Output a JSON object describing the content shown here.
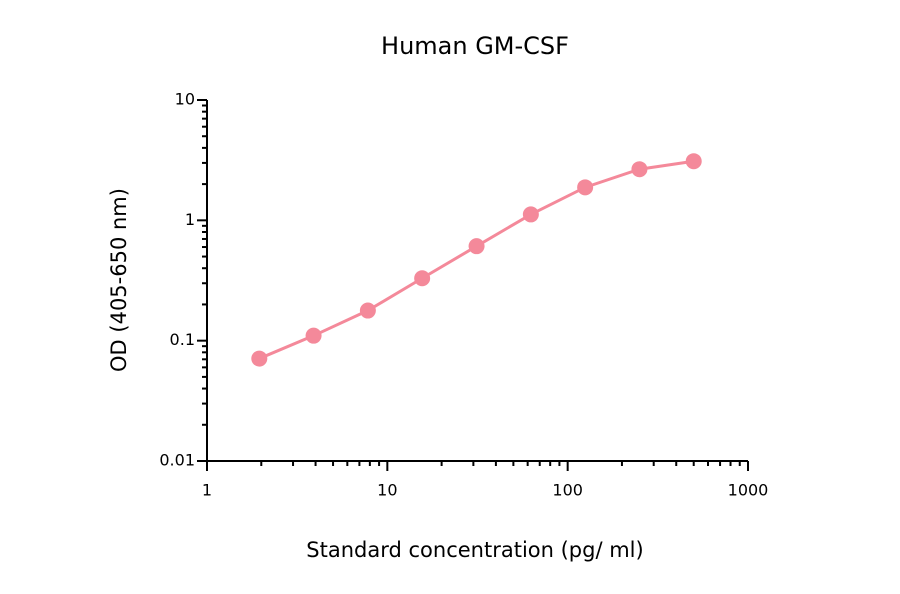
{
  "chart_data": {
    "type": "line",
    "title": "Human GM-CSF",
    "x_label": "Standard concentration (pg/ ml)",
    "y_label": "OD (405-650 nm)",
    "x": [
      1.95,
      3.9,
      7.8,
      15.6,
      31.25,
      62.5,
      125,
      250,
      500
    ],
    "series": [
      {
        "name": "Human GM-CSF",
        "color": "#f4899a",
        "values": [
          0.071,
          0.11,
          0.178,
          0.33,
          0.61,
          1.12,
          1.88,
          2.66,
          3.1
        ]
      }
    ],
    "xlim": [
      1,
      1000
    ],
    "xticks": [
      1,
      10,
      100,
      1000
    ],
    "ylim": [
      0.01,
      10
    ],
    "yticks": [
      0.01,
      0.1,
      1,
      10
    ],
    "xscale": "log",
    "yscale": "log",
    "grid": false
  }
}
